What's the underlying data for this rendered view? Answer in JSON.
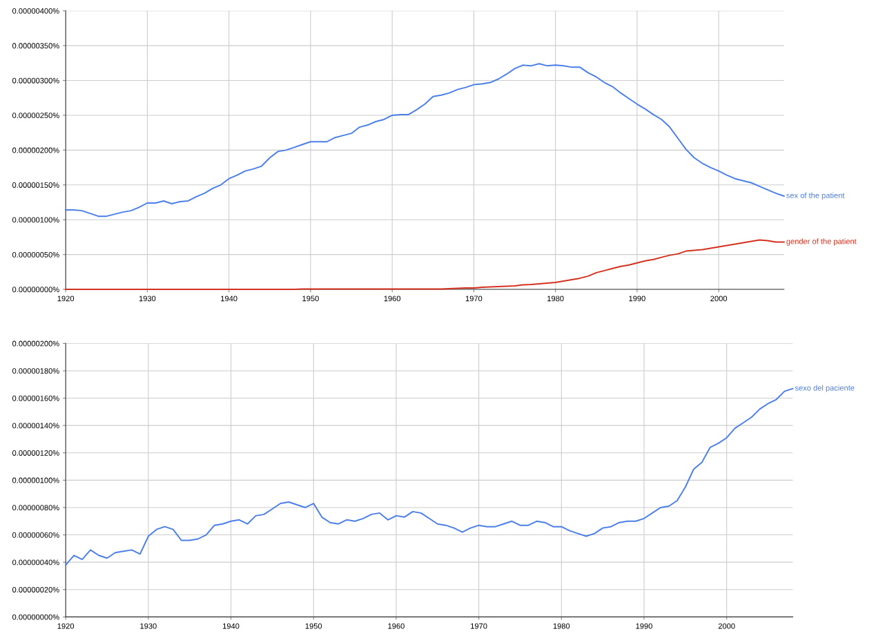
{
  "chart_data": [
    {
      "type": "line",
      "x": [
        1920,
        1921,
        1922,
        1923,
        1924,
        1925,
        1926,
        1927,
        1928,
        1929,
        1930,
        1931,
        1932,
        1933,
        1934,
        1935,
        1936,
        1937,
        1938,
        1939,
        1940,
        1941,
        1942,
        1943,
        1944,
        1945,
        1946,
        1947,
        1948,
        1949,
        1950,
        1951,
        1952,
        1953,
        1954,
        1955,
        1956,
        1957,
        1958,
        1959,
        1960,
        1961,
        1962,
        1963,
        1964,
        1965,
        1966,
        1967,
        1968,
        1969,
        1970,
        1971,
        1972,
        1973,
        1974,
        1975,
        1976,
        1977,
        1978,
        1979,
        1980,
        1981,
        1982,
        1983,
        1984,
        1985,
        1986,
        1987,
        1988,
        1989,
        1990,
        1991,
        1992,
        1993,
        1994,
        1995,
        1996,
        1997,
        1998,
        1999,
        2000,
        2001,
        2002,
        2003,
        2004,
        2005,
        2006,
        2007,
        2008
      ],
      "series": [
        {
          "name": "sex of the patient",
          "color": "#4a7ee8",
          "values": [
            1.14e-06,
            1.14e-06,
            1.13e-06,
            1.09e-06,
            1.05e-06,
            1.05e-06,
            1.08e-06,
            1.11e-06,
            1.13e-06,
            1.18e-06,
            1.24e-06,
            1.24e-06,
            1.27e-06,
            1.23e-06,
            1.26e-06,
            1.27e-06,
            1.33e-06,
            1.38e-06,
            1.45e-06,
            1.5e-06,
            1.59e-06,
            1.64e-06,
            1.7e-06,
            1.73e-06,
            1.77e-06,
            1.89e-06,
            1.98e-06,
            2e-06,
            2.04e-06,
            2.08e-06,
            2.12e-06,
            2.12e-06,
            2.12e-06,
            2.18e-06,
            2.21e-06,
            2.24e-06,
            2.33e-06,
            2.36e-06,
            2.41e-06,
            2.44e-06,
            2.5e-06,
            2.51e-06,
            2.51e-06,
            2.58e-06,
            2.66e-06,
            2.77e-06,
            2.79e-06,
            2.82e-06,
            2.87e-06,
            2.9e-06,
            2.94e-06,
            2.95e-06,
            2.97e-06,
            3.02e-06,
            3.09e-06,
            3.17e-06,
            3.22e-06,
            3.21e-06,
            3.24e-06,
            3.21e-06,
            3.22e-06,
            3.21e-06,
            3.19e-06,
            3.19e-06,
            3.11e-06,
            3.05e-06,
            2.97e-06,
            2.91e-06,
            2.82e-06,
            2.74e-06,
            2.66e-06,
            2.59e-06,
            2.51e-06,
            2.44e-06,
            2.33e-06,
            2.17e-06,
            2.01e-06,
            1.89e-06,
            1.81e-06,
            1.75e-06,
            1.7e-06,
            1.64e-06,
            1.59e-06,
            1.56e-06,
            1.53e-06,
            1.48e-06,
            1.43e-06,
            1.38e-06,
            1.34e-06
          ]
        },
        {
          "name": "gender of the patient",
          "color": "#d4301f",
          "values": [
            0,
            0,
            0,
            0,
            0,
            0,
            0,
            0,
            0,
            0,
            0,
            0,
            0,
            0,
            0,
            0,
            0,
            0,
            0,
            0,
            0,
            0,
            0,
            0,
            0,
            0,
            0,
            0,
            0,
            5e-09,
            5e-09,
            5e-09,
            5e-09,
            5e-09,
            5e-09,
            5e-09,
            5e-09,
            5e-09,
            5e-09,
            5e-09,
            5e-09,
            5e-09,
            5e-09,
            5e-09,
            5e-09,
            5e-09,
            5e-09,
            1e-08,
            1.5e-08,
            2e-08,
            2e-08,
            3e-08,
            3.5e-08,
            4e-08,
            4.5e-08,
            5e-08,
            6.5e-08,
            7e-08,
            8e-08,
            9e-08,
            1e-07,
            1.2e-07,
            1.4e-07,
            1.6e-07,
            1.9e-07,
            2.4e-07,
            2.7e-07,
            3e-07,
            3.3e-07,
            3.5e-07,
            3.8e-07,
            4.1e-07,
            4.3e-07,
            4.6e-07,
            4.9e-07,
            5.1e-07,
            5.5e-07,
            5.6e-07,
            5.7e-07,
            5.9e-07,
            6.1e-07,
            6.3e-07,
            6.5e-07,
            6.7e-07,
            6.9e-07,
            7.1e-07,
            7e-07,
            6.8e-07,
            6.8e-07
          ]
        }
      ],
      "xlim": [
        1920,
        2008
      ],
      "xticks": [
        1920,
        1930,
        1940,
        1950,
        1960,
        1970,
        1980,
        1990,
        2000
      ],
      "ylim": [
        0,
        4e-06
      ],
      "yticks": [
        {
          "value": 0,
          "label": "0.00000000%"
        },
        {
          "value": 5e-07,
          "label": "0.00000050%"
        },
        {
          "value": 1e-06,
          "label": "0.00000100%"
        },
        {
          "value": 1.5e-06,
          "label": "0.00000150%"
        },
        {
          "value": 2e-06,
          "label": "0.00000200%"
        },
        {
          "value": 2.5e-06,
          "label": "0.00000250%"
        },
        {
          "value": 3e-06,
          "label": "0.00000300%"
        },
        {
          "value": 3.5e-06,
          "label": "0.00000350%"
        },
        {
          "value": 4e-06,
          "label": "0.00000400%"
        }
      ],
      "grid": true
    },
    {
      "type": "line",
      "x": [
        1920,
        1921,
        1922,
        1923,
        1924,
        1925,
        1926,
        1927,
        1928,
        1929,
        1930,
        1931,
        1932,
        1933,
        1934,
        1935,
        1936,
        1937,
        1938,
        1939,
        1940,
        1941,
        1942,
        1943,
        1944,
        1945,
        1946,
        1947,
        1948,
        1949,
        1950,
        1951,
        1952,
        1953,
        1954,
        1955,
        1956,
        1957,
        1958,
        1959,
        1960,
        1961,
        1962,
        1963,
        1964,
        1965,
        1966,
        1967,
        1968,
        1969,
        1970,
        1971,
        1972,
        1973,
        1974,
        1975,
        1976,
        1977,
        1978,
        1979,
        1980,
        1981,
        1982,
        1983,
        1984,
        1985,
        1986,
        1987,
        1988,
        1989,
        1990,
        1991,
        1992,
        1993,
        1994,
        1995,
        1996,
        1997,
        1998,
        1999,
        2000,
        2001,
        2002,
        2003,
        2004,
        2005,
        2006,
        2007,
        2008
      ],
      "series": [
        {
          "name": "sexo del paciente",
          "color": "#4a7ee8",
          "values": [
            3.8e-07,
            4.5e-07,
            4.2e-07,
            4.9e-07,
            4.5e-07,
            4.3e-07,
            4.7e-07,
            4.8e-07,
            4.9e-07,
            4.6e-07,
            5.9e-07,
            6.4e-07,
            6.6e-07,
            6.4e-07,
            5.6e-07,
            5.6e-07,
            5.7e-07,
            6e-07,
            6.7e-07,
            6.8e-07,
            7e-07,
            7.1e-07,
            6.8e-07,
            7.4e-07,
            7.5e-07,
            7.9e-07,
            8.3e-07,
            8.4e-07,
            8.2e-07,
            8e-07,
            8.3e-07,
            7.3e-07,
            6.9e-07,
            6.8e-07,
            7.1e-07,
            7e-07,
            7.2e-07,
            7.5e-07,
            7.6e-07,
            7.1e-07,
            7.4e-07,
            7.3e-07,
            7.7e-07,
            7.6e-07,
            7.2e-07,
            6.8e-07,
            6.7e-07,
            6.5e-07,
            6.2e-07,
            6.5e-07,
            6.7e-07,
            6.6e-07,
            6.6e-07,
            6.8e-07,
            7e-07,
            6.7e-07,
            6.7e-07,
            7e-07,
            6.9e-07,
            6.6e-07,
            6.6e-07,
            6.3e-07,
            6.1e-07,
            5.9e-07,
            6.1e-07,
            6.5e-07,
            6.6e-07,
            6.9e-07,
            7e-07,
            7e-07,
            7.2e-07,
            7.6e-07,
            8e-07,
            8.1e-07,
            8.5e-07,
            9.5e-07,
            1.08e-06,
            1.13e-06,
            1.24e-06,
            1.27e-06,
            1.31e-06,
            1.38e-06,
            1.42e-06,
            1.46e-06,
            1.52e-06,
            1.56e-06,
            1.59e-06,
            1.65e-06,
            1.67e-06
          ]
        }
      ],
      "xlim": [
        1920,
        2008
      ],
      "xticks": [
        1920,
        1930,
        1940,
        1950,
        1960,
        1970,
        1980,
        1990,
        2000
      ],
      "ylim": [
        0,
        2e-06
      ],
      "yticks": [
        {
          "value": 0,
          "label": "0.00000000%"
        },
        {
          "value": 2e-07,
          "label": "0.00000020%"
        },
        {
          "value": 4e-07,
          "label": "0.00000040%"
        },
        {
          "value": 6e-07,
          "label": "0.00000060%"
        },
        {
          "value": 8e-07,
          "label": "0.00000080%"
        },
        {
          "value": 1e-06,
          "label": "0.00000100%"
        },
        {
          "value": 1.2e-06,
          "label": "0.00000120%"
        },
        {
          "value": 1.4e-06,
          "label": "0.00000140%"
        },
        {
          "value": 1.6e-06,
          "label": "0.00000160%"
        },
        {
          "value": 1.8e-06,
          "label": "0.00000180%"
        },
        {
          "value": 2e-06,
          "label": "0.00000200%"
        }
      ],
      "grid": true
    }
  ]
}
